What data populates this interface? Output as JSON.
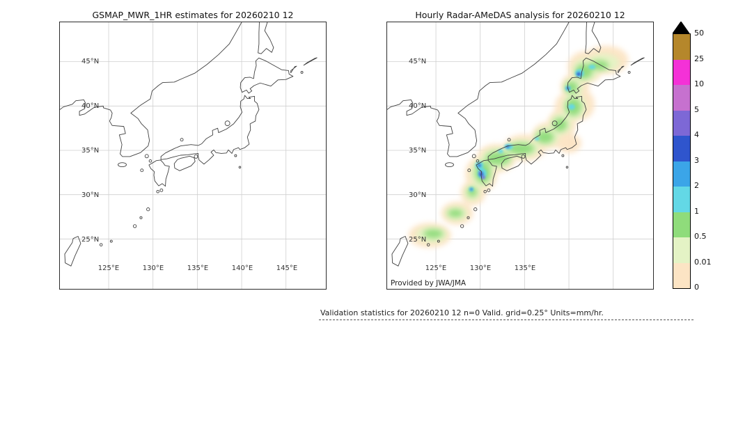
{
  "left_map": {
    "title": "GSMAP_MWR_1HR estimates for 20260210 12"
  },
  "right_map": {
    "title": "Hourly Radar-AMeDAS analysis for 20260210 12",
    "credit": "Provided by JWA/JMA"
  },
  "axes": {
    "lat": [
      "45°N",
      "40°N",
      "35°N",
      "30°N",
      "25°N"
    ],
    "lon": [
      "125°E",
      "130°E",
      "135°E",
      "140°E",
      "145°E"
    ]
  },
  "legend": {
    "labels": [
      "50",
      "25",
      "10",
      "5",
      "4",
      "3",
      "2",
      "1",
      "0.5",
      "0.01",
      "0"
    ],
    "colors": [
      "#b5872b",
      "#f431d7",
      "#c671cf",
      "#7d68d6",
      "#2f55cd",
      "#3ba5e8",
      "#63d8e6",
      "#8fdc7b",
      "#e4f3c5",
      "#fce4c4"
    ],
    "overflow_color": "#000000"
  },
  "footer": {
    "text": "Validation statistics for 20260210 12  n=0 Valid. grid=0.25° Units=mm/hr."
  }
}
